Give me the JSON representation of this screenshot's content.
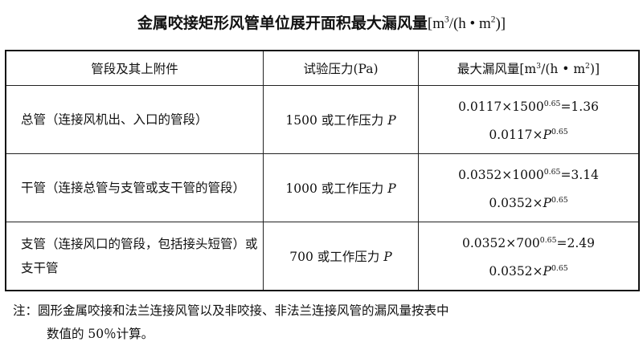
{
  "title": {
    "text": "金属咬接矩形风管单位展开面积最大漏风量",
    "unit_pre": "[m",
    "unit_mid": "/(h • m",
    "unit_post": ")]",
    "sup1": "3",
    "sup2": "2"
  },
  "table": {
    "headers": {
      "col1": "管段及其上附件",
      "col2": "试验压力(Pa)",
      "col3_pre": "最大漏风量[m",
      "col3_mid": "/(h • m",
      "col3_post": ")]",
      "sup1": "3",
      "sup2": "2"
    },
    "rows": [
      {
        "segment": "总管（连接风机出、入口的管段）",
        "pressure": "1500 或工作压力",
        "p": "P",
        "f1_base": "0.0117×1500",
        "f1_exp": "0.65",
        "f1_result": "=1.36",
        "f2_base": "0.0117×",
        "f2_exp": "0.65"
      },
      {
        "segment": "干管（连接总管与支管或支干管的管段）",
        "pressure": "1000 或工作压力",
        "p": "P",
        "f1_base": "0.0352×1000",
        "f1_exp": "0.65",
        "f1_result": "=3.14",
        "f2_base": "0.0352×",
        "f2_exp": "0.65"
      },
      {
        "segment": "支管（连接风口的管段，包括接头短管）或支干管",
        "pressure": "700 或工作压力",
        "p": "P",
        "f1_base": "0.0352×700",
        "f1_exp": "0.65",
        "f1_result": "=2.49",
        "f2_base": "0.0352×",
        "f2_exp": "0.65"
      }
    ]
  },
  "note": {
    "line1": "注：圆形金属咬接和法兰连接风管以及非咬接、非法兰连接风管的漏风量按表中",
    "line2": "数值的 50％计算。"
  }
}
